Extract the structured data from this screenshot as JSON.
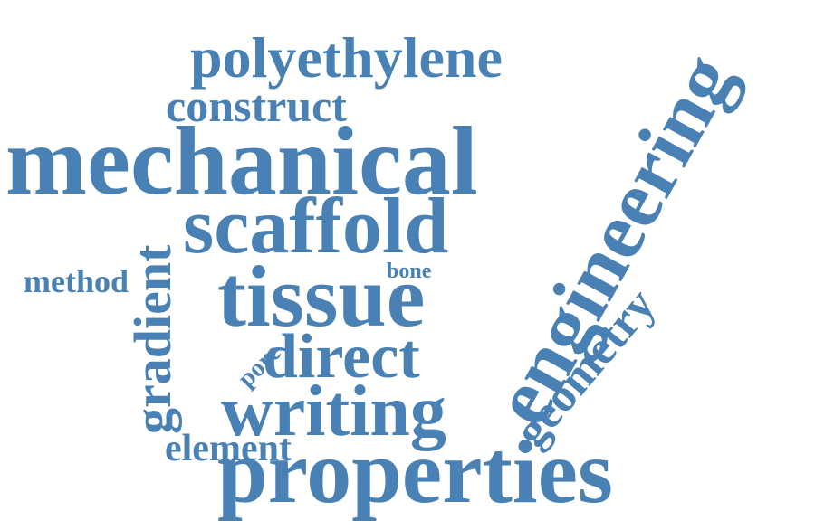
{
  "word_color": "#4a81b5",
  "words": {
    "polyethylene": "polyethylene",
    "construct": "construct",
    "mechanical": "mechanical",
    "scaffold": "scaffold",
    "engineering": "engineering",
    "method": "method",
    "gradient": "gradient",
    "bone": "bone",
    "tissue": "tissue",
    "geometry": "geometry",
    "pore": "pore",
    "direct": "direct",
    "writing": "writing",
    "element": "element",
    "properties": "properties"
  }
}
